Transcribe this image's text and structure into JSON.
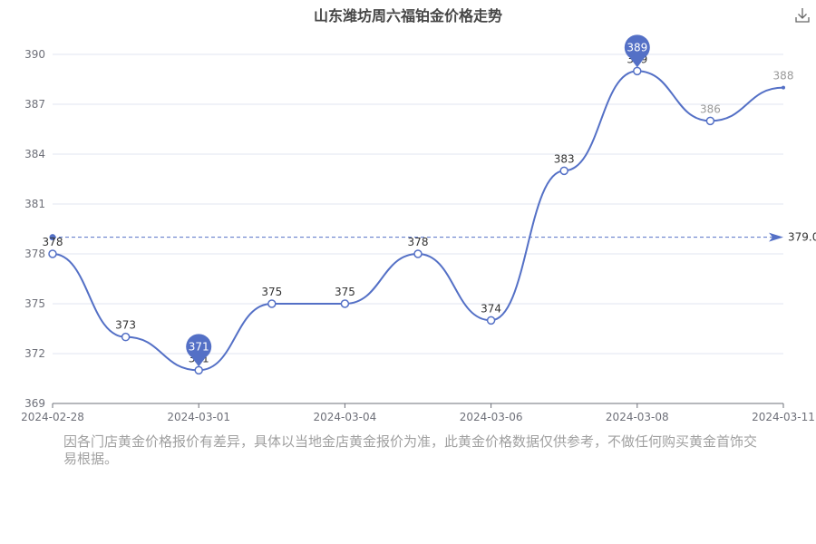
{
  "title": "山东潍坊周六福铂金价格走势",
  "download_icon": "download-icon",
  "note": "因各门店黄金价格报价有差异，具体以当地金店黄金报价为准，此黄金价格数据仅供参考，不做任何购买黄金首饰交易根据。",
  "colors": {
    "line": "#5470c6",
    "grid": "#e0e6f1",
    "axis": "#6e7079",
    "label": "#333333",
    "muted": "#999999",
    "note": "#a0a0a0"
  },
  "chart_data": {
    "type": "line",
    "title": "山东潍坊周六福铂金价格走势",
    "x_tick_labels": [
      "2024-02-28",
      "2024-03-01",
      "2024-03-04",
      "2024-03-06",
      "2024-03-08",
      "2024-03-11"
    ],
    "ylim": [
      369,
      390
    ],
    "y_ticks": [
      369,
      372,
      375,
      378,
      381,
      384,
      387,
      390
    ],
    "grid": true,
    "series": [
      {
        "values": [
          378,
          373,
          371,
          375,
          375,
          378,
          374,
          383,
          389,
          386,
          388
        ],
        "labels": [
          "378",
          "373",
          "371",
          "375",
          "375",
          "378",
          "374",
          "383",
          "389",
          "386",
          "388"
        ]
      }
    ],
    "markers": {
      "max": "389",
      "min": "371"
    },
    "average_line": {
      "value": 379.0,
      "label": "379.0"
    }
  }
}
